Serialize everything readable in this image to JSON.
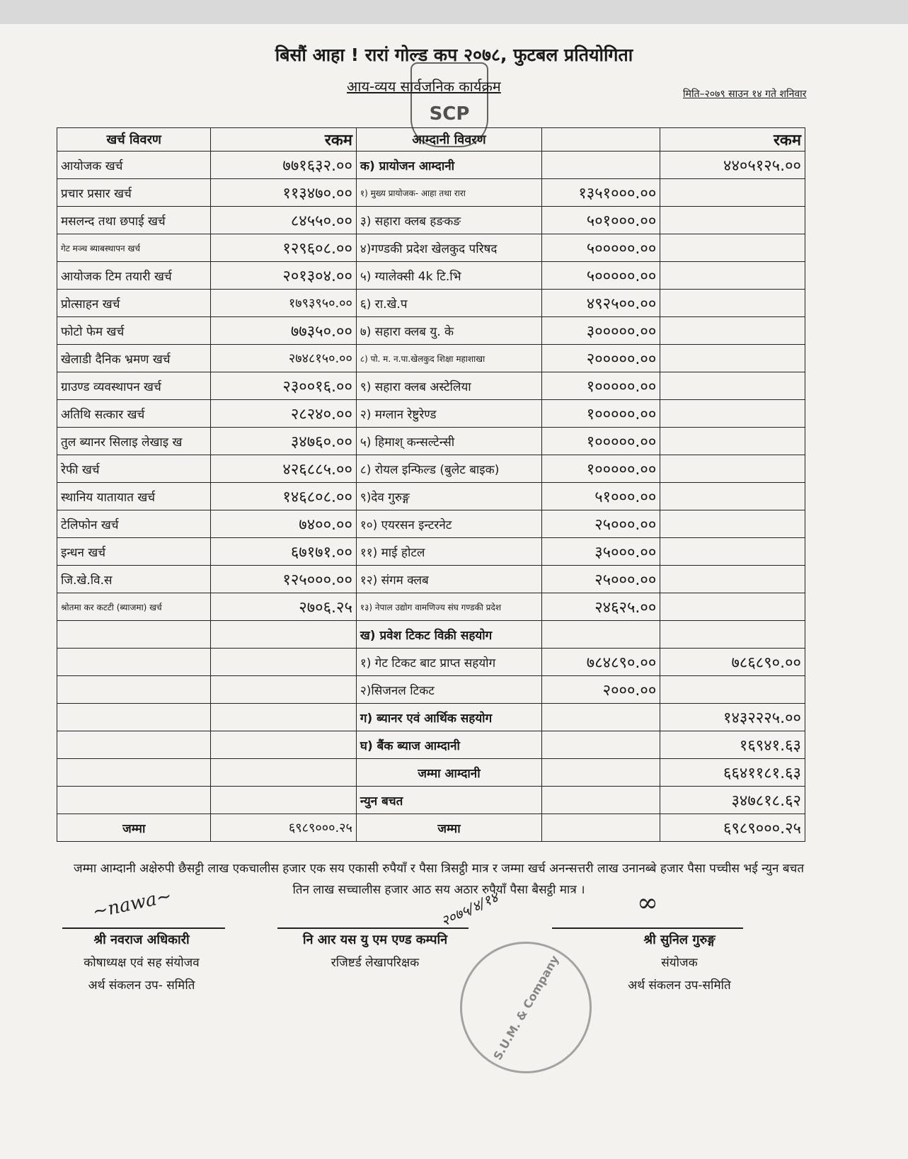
{
  "header": {
    "title": "बिसौं आहा ! रारां गोल्ड कप २०७८, फुटबल प्रतियोगिता",
    "subtitle": "आय-व्यय सार्वजनिक कार्यक्रम",
    "date": "मिति–२०७९ साउन १४ गते शनिवार",
    "logo_text": "SCP"
  },
  "table": {
    "headers": [
      "खर्च विवरण",
      "रकम",
      "आम्दानी विवरण",
      "",
      "रकम"
    ],
    "rows": [
      [
        "आयोजक खर्च",
        "७७१६३२.००",
        "क) प्रायोजन आम्दानी",
        "",
        "४४०५१२५.००"
      ],
      [
        "प्रचार प्रसार खर्च",
        "११३४७०.००",
        "१) मुख्य प्रायोजक- आहा तथा रारा",
        "१३५१०००.००",
        ""
      ],
      [
        "मसलन्द तथा छपाई खर्च",
        "८४५५०.००",
        "३) सहारा क्लब हङकङ",
        "५०१०००.००",
        ""
      ],
      [
        "गेट मञ्च ब्याबस्थापन खर्च",
        "१२९६०८.००",
        "४)गण्डकी प्रदेश खेलकुद परिषद",
        "५०००००.००",
        ""
      ],
      [
        "आयोजक टिम तयारी खर्च",
        "२०१३०४.००",
        "५) ग्यालेक्सी 4k टि.भि",
        "५०००००.००",
        ""
      ],
      [
        "प्रोत्साहन खर्च",
        "१७९३९५०.००",
        "६) रा.खे.प",
        "४९२५००.००",
        ""
      ],
      [
        "फोटो फेम खर्च",
        "७७३५०.००",
        "७) सहारा क्लब यु. के",
        "३०००००.००",
        ""
      ],
      [
        "खेलाडी दैनिक भ्रमण खर्च",
        "२७४८१५०.००",
        "८) पो. म. न.पा.खेलकुद शिक्षा महाशाखा",
        "२०००००.००",
        ""
      ],
      [
        "ग्राउण्ड व्यवस्थापन खर्च",
        "२३००१६.००",
        "९) सहारा क्लब अस्टेलिया",
        "१०००००.००",
        ""
      ],
      [
        "अतिथि सत्कार खर्च",
        "२८२४०.००",
        "२) मग्लान रेष्टुरेण्ड",
        "१०००००.००",
        ""
      ],
      [
        "तुल ब्यानर सिलाइ लेखाइ ख",
        "३४७६०.००",
        "५) हिमाश् कन्सल्टेन्सी",
        "१०००००.००",
        ""
      ],
      [
        "रेफी खर्च",
        "४२६८८५.००",
        "८) रोयल इन्फिल्ड (बुलेट बाइक)",
        "१०००००.००",
        ""
      ],
      [
        "स्थानिय यातायात खर्च",
        "१४६८०८.००",
        "९)देव गुरुङ्ग",
        "५१०००.००",
        ""
      ],
      [
        "टेलिफोन खर्च",
        "७४००.००",
        "१०) एयरसन इन्टरनेट",
        "२५०००.००",
        ""
      ],
      [
        "इन्धन खर्च",
        "६७१७१.००",
        "११) माई होटल",
        "३५०००.००",
        ""
      ],
      [
        "जि.खे.वि.स",
        "१२५०००.००",
        "१२) संगम क्लब",
        "२५०००.००",
        ""
      ],
      [
        "श्रोतमा कर कटटी (ब्याजमा) खर्च",
        "२७०६.२५",
        "१३) नेपाल उद्योग वामणिज्य संघ गण्डकी प्रदेश",
        "२४६२५.००",
        ""
      ],
      [
        "",
        "",
        "ख) प्रवेश टिकट विक्री सहयोग",
        "",
        ""
      ],
      [
        "",
        "",
        "१) गेट टिकट बाट प्राप्त सहयोग",
        "७८४८९०.००",
        "७८६८९०.००"
      ],
      [
        "",
        "",
        "२)सिजनल टिकट",
        "२०००.००",
        ""
      ],
      [
        "",
        "",
        "ग) ब्यानर एवं आर्थिक सहयोग",
        "",
        "१४३२२२५.००"
      ],
      [
        "",
        "",
        "घ) बैंक ब्याज आम्दानी",
        "",
        "१६९४१.६३"
      ],
      [
        "",
        "",
        "जम्मा आम्दानी",
        "",
        "६६४११८१.६३"
      ],
      [
        "",
        "",
        "न्युन बचत",
        "",
        "३४७८१८.६२"
      ],
      [
        "जम्मा",
        "६९८९०००.२५",
        "जम्मा",
        "",
        "६९८९०००.२५"
      ]
    ]
  },
  "amount_in_words": "जम्मा आम्दानी अक्षेरुपी छैसट्टी लाख एकचालीस हजार एक सय एकासी रुपैयाँ र पैसा त्रिसट्ठी मात्र र जम्मा खर्च अनन्सत्तरी लाख उनानब्बे हजार पैसा पच्चीस भई न्युन बचत तिन लाख सच्चालीस हजार आठ सय अठार रुपैयाँ पैसा बैसट्ठी मात्र ।",
  "signatories": [
    {
      "name": "श्री नवराज अधिकारी",
      "role": "कोषाध्यक्ष एवं सह संयोजव",
      "committee": "अर्थ संकलन उप- समिति"
    },
    {
      "name": "नि आर यस यु एम एण्ड कम्पनि",
      "role": "रजिष्टर्ड लेखापरिक्षक",
      "committee": ""
    },
    {
      "name": "श्री सुनिल गुरुङ्ग",
      "role": "संयोजक",
      "committee": "अर्थ संकलन उप-समिति"
    }
  ],
  "handwritten_date": "२०७५/४/१४",
  "stamp_text": "S.U.M. & Company"
}
